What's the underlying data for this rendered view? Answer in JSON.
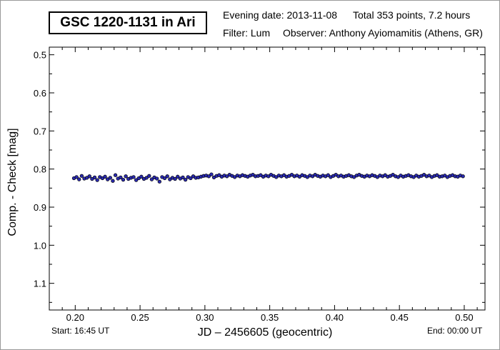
{
  "header": {
    "title": "GSC 1220-1131 in Ari",
    "evening_date": "Evening date: 2013-11-08",
    "total": "Total 353 points, 7.2 hours",
    "filter": "Filter: Lum",
    "observer": "Observer: Anthony Ayiomamitis (Athens, GR)"
  },
  "footer": {
    "start": "Start: 16:45 UT",
    "end": "End: 00:00 UT"
  },
  "colors": {
    "marker_fill": "#2a2ab0",
    "marker_stroke": "#000000"
  },
  "chart_data": {
    "type": "scatter",
    "title": "GSC 1220-1131 in Ari",
    "xlabel": "JD – 2456605  (geocentric)",
    "ylabel": "Comp. - Check [mag]",
    "xlim": [
      0.18,
      0.516
    ],
    "ylim": [
      0.48,
      1.17
    ],
    "y_inverted": true,
    "grid": false,
    "xticks": [
      0.2,
      0.25,
      0.3,
      0.35,
      0.4,
      0.45,
      0.5
    ],
    "xtick_labels": [
      "0.20",
      "0.25",
      "0.30",
      "0.35",
      "0.40",
      "0.45",
      "0.50"
    ],
    "yticks": [
      0.5,
      0.6,
      0.7,
      0.8,
      0.9,
      1.0,
      1.1
    ],
    "ytick_labels": [
      "0.5",
      "0.6",
      "0.7",
      "0.8",
      "0.9",
      "1.0",
      "1.1"
    ],
    "series": [
      {
        "x": [
          0.199,
          0.201,
          0.203,
          0.205,
          0.207,
          0.209,
          0.211,
          0.213,
          0.215,
          0.217,
          0.219,
          0.221,
          0.223,
          0.225,
          0.227,
          0.229,
          0.231,
          0.233,
          0.235,
          0.237,
          0.239,
          0.241,
          0.243,
          0.245,
          0.247,
          0.249,
          0.251,
          0.253,
          0.255,
          0.257,
          0.259,
          0.261,
          0.263,
          0.265,
          0.267,
          0.269,
          0.271,
          0.273,
          0.275,
          0.277,
          0.279,
          0.281,
          0.283,
          0.285,
          0.287,
          0.289,
          0.291,
          0.293,
          0.295,
          0.297,
          0.299,
          0.301,
          0.303,
          0.305,
          0.307,
          0.309,
          0.311,
          0.313,
          0.315,
          0.317,
          0.319,
          0.321,
          0.323,
          0.325,
          0.327,
          0.329,
          0.331,
          0.333,
          0.335,
          0.337,
          0.339,
          0.341,
          0.343,
          0.345,
          0.347,
          0.349,
          0.351,
          0.353,
          0.355,
          0.357,
          0.359,
          0.361,
          0.363,
          0.365,
          0.367,
          0.369,
          0.371,
          0.373,
          0.375,
          0.377,
          0.379,
          0.381,
          0.383,
          0.385,
          0.387,
          0.389,
          0.391,
          0.393,
          0.395,
          0.397,
          0.399,
          0.401,
          0.403,
          0.405,
          0.407,
          0.409,
          0.411,
          0.413,
          0.415,
          0.417,
          0.419,
          0.421,
          0.423,
          0.425,
          0.427,
          0.429,
          0.431,
          0.433,
          0.435,
          0.437,
          0.439,
          0.441,
          0.443,
          0.445,
          0.447,
          0.449,
          0.451,
          0.453,
          0.455,
          0.457,
          0.459,
          0.461,
          0.463,
          0.465,
          0.467,
          0.469,
          0.471,
          0.473,
          0.475,
          0.477,
          0.479,
          0.481,
          0.483,
          0.485,
          0.487,
          0.489,
          0.491,
          0.493,
          0.495,
          0.497,
          0.499
        ],
        "y": [
          0.824,
          0.821,
          0.827,
          0.818,
          0.825,
          0.823,
          0.819,
          0.826,
          0.822,
          0.829,
          0.821,
          0.824,
          0.82,
          0.827,
          0.823,
          0.831,
          0.816,
          0.825,
          0.822,
          0.828,
          0.819,
          0.826,
          0.823,
          0.821,
          0.829,
          0.824,
          0.82,
          0.826,
          0.823,
          0.818,
          0.827,
          0.822,
          0.825,
          0.833,
          0.821,
          0.824,
          0.819,
          0.827,
          0.823,
          0.826,
          0.82,
          0.825,
          0.822,
          0.828,
          0.821,
          0.824,
          0.819,
          0.823,
          0.822,
          0.82,
          0.818,
          0.817,
          0.819,
          0.814,
          0.822,
          0.818,
          0.816,
          0.82,
          0.817,
          0.819,
          0.815,
          0.818,
          0.821,
          0.817,
          0.819,
          0.816,
          0.818,
          0.82,
          0.817,
          0.815,
          0.819,
          0.818,
          0.816,
          0.82,
          0.817,
          0.819,
          0.815,
          0.818,
          0.821,
          0.817,
          0.819,
          0.816,
          0.82,
          0.818,
          0.815,
          0.819,
          0.817,
          0.82,
          0.816,
          0.818,
          0.821,
          0.817,
          0.819,
          0.815,
          0.818,
          0.82,
          0.817,
          0.819,
          0.816,
          0.821,
          0.818,
          0.815,
          0.819,
          0.817,
          0.82,
          0.818,
          0.816,
          0.819,
          0.821,
          0.817,
          0.815,
          0.818,
          0.82,
          0.817,
          0.819,
          0.816,
          0.818,
          0.821,
          0.817,
          0.819,
          0.816,
          0.82,
          0.818,
          0.815,
          0.819,
          0.821,
          0.817,
          0.82,
          0.818,
          0.816,
          0.819,
          0.821,
          0.817,
          0.82,
          0.818,
          0.815,
          0.819,
          0.817,
          0.821,
          0.818,
          0.816,
          0.82,
          0.819,
          0.817,
          0.821,
          0.818,
          0.816,
          0.819,
          0.82,
          0.817,
          0.819
        ]
      }
    ]
  }
}
